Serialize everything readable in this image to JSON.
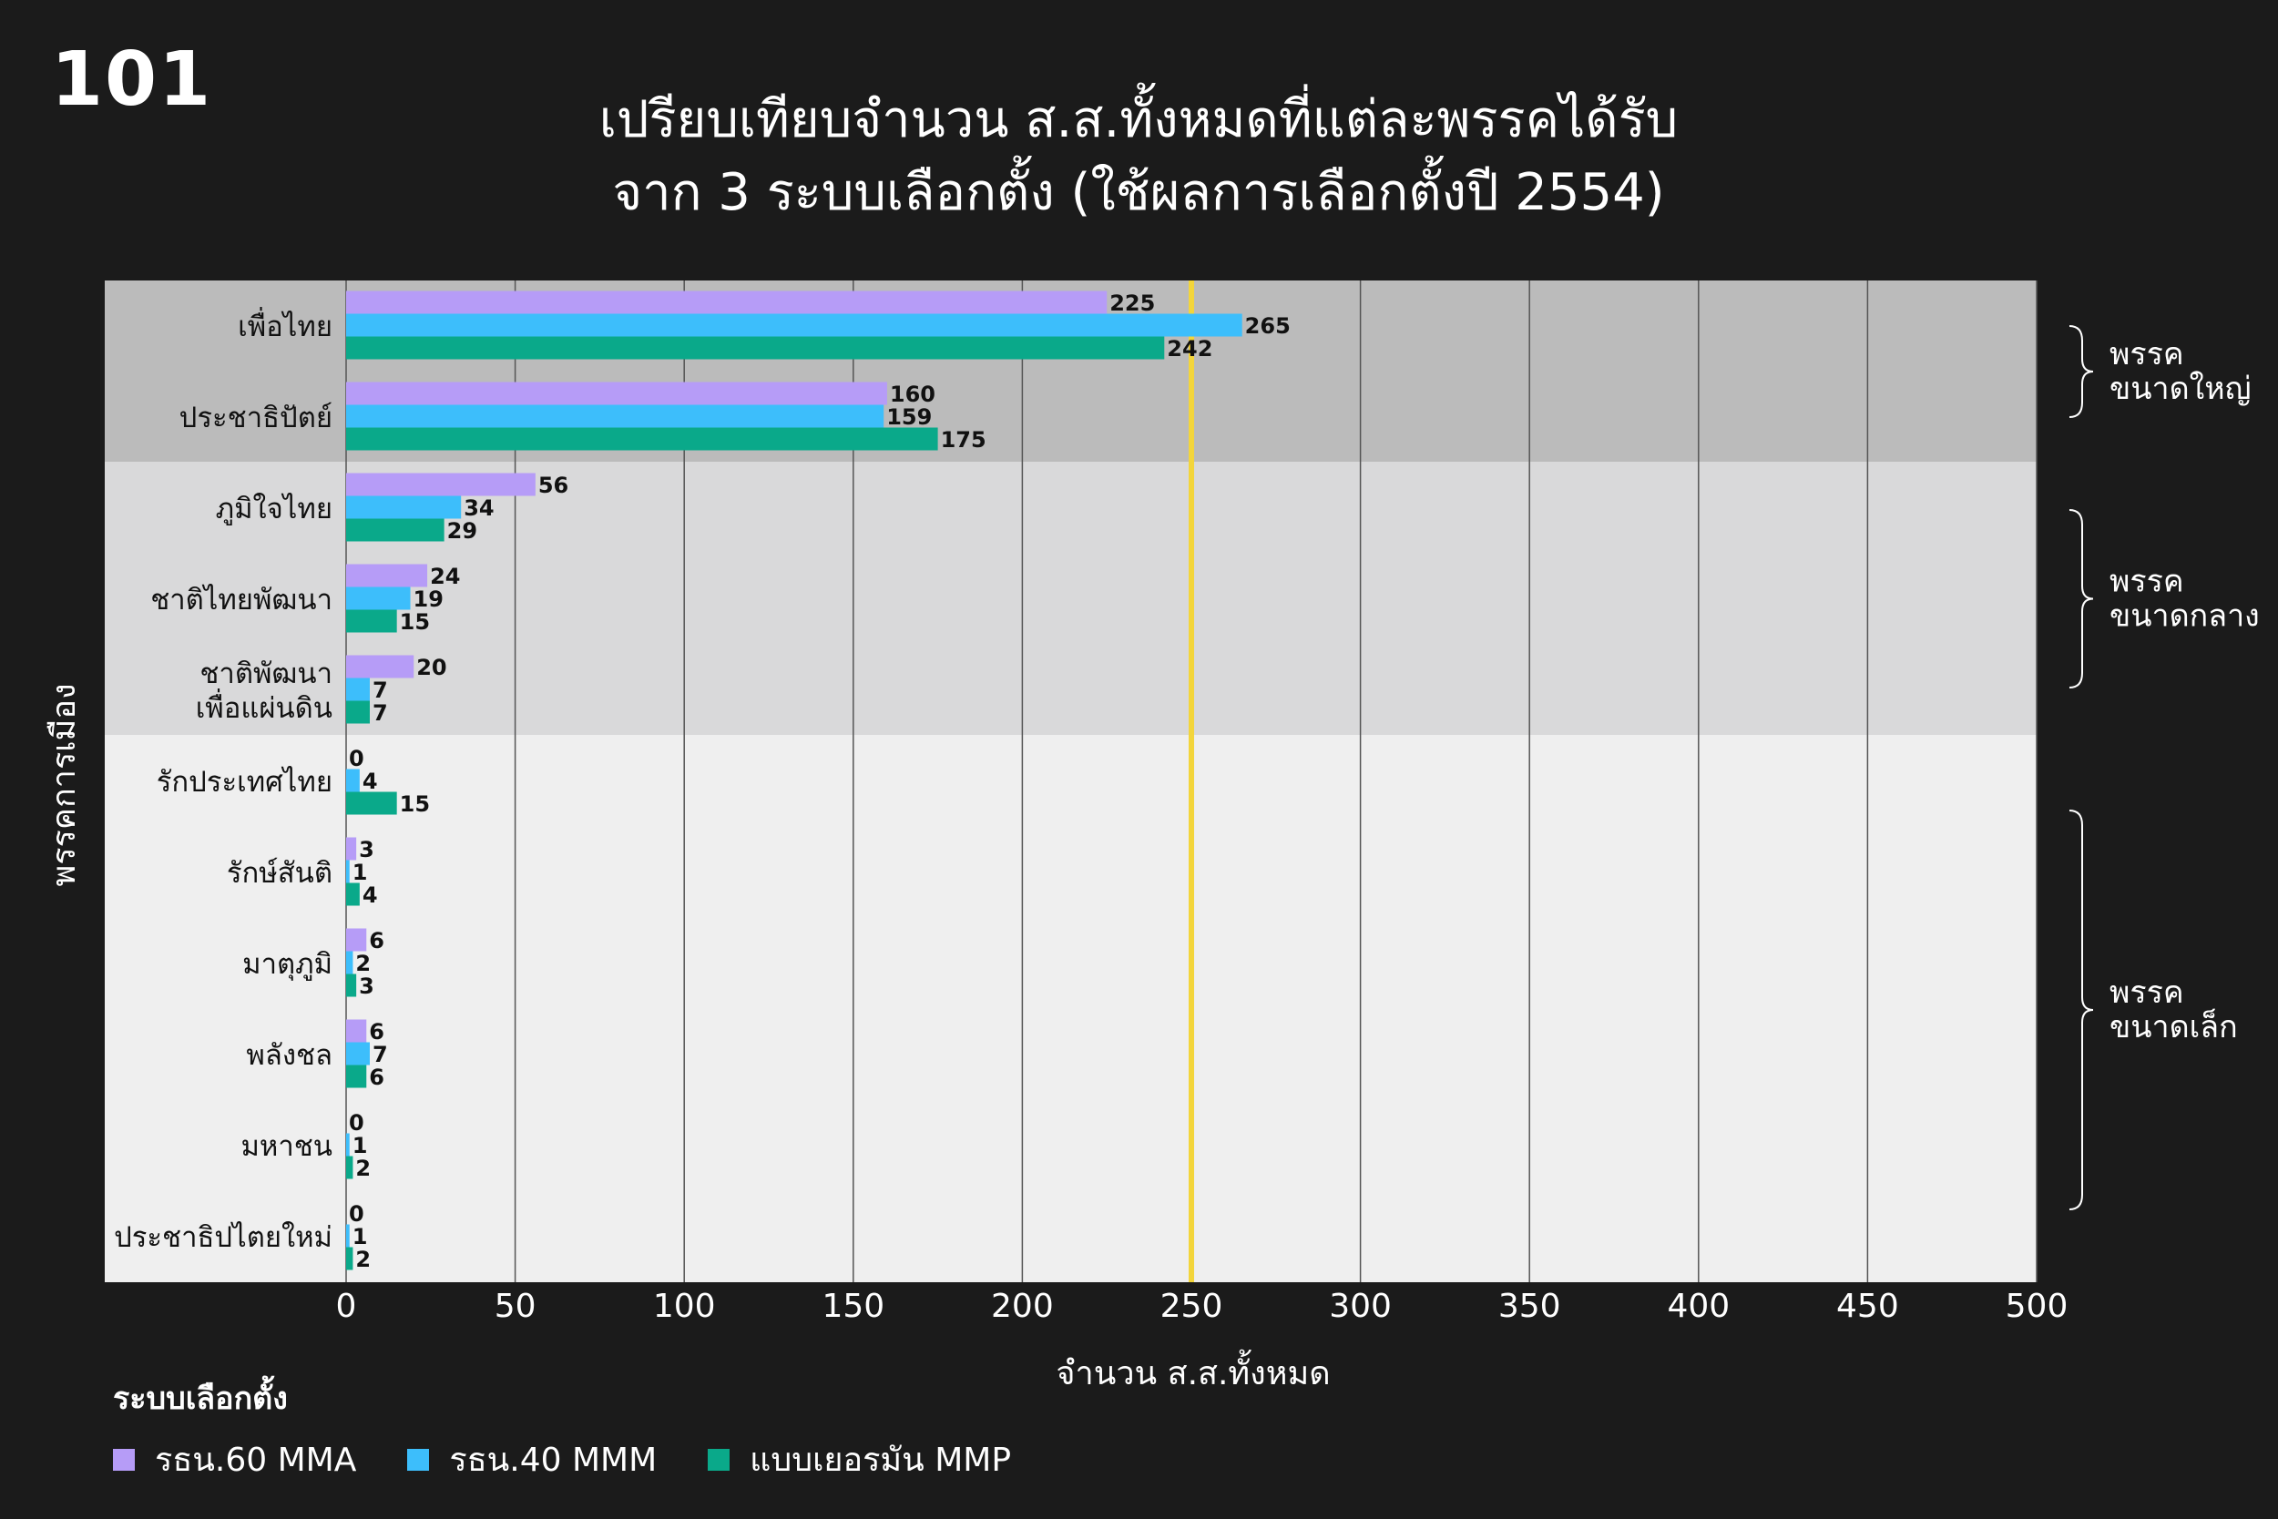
{
  "logo": "101",
  "title_lines": [
    "เปรียบเทียบจำนวน ส.ส.ทั้งหมดที่แต่ละพรรคได้รับ",
    "จาก 3 ระบบเลือกตั้ง (ใช้ผลการเลือกตั้งปี 2554)"
  ],
  "legend": {
    "title": "ระบบเลือกตั้ง",
    "items": [
      {
        "label": "รธน.60 MMA",
        "color": "#b69cf7"
      },
      {
        "label": "รธน.40 MMM",
        "color": "#3dbefb"
      },
      {
        "label": "แบบเยอรมัน MMP",
        "color": "#0aa98a"
      }
    ]
  },
  "chart_data": {
    "type": "bar",
    "orientation": "horizontal",
    "xlabel": "จำนวน ส.ส.ทั้งหมด",
    "ylabel": "พรรคการเมือง",
    "xlim": [
      0,
      500
    ],
    "xticks": [
      "0",
      "50",
      "100",
      "150",
      "200",
      "250",
      "300",
      "350",
      "400",
      "450",
      "500"
    ],
    "reference_line": {
      "x": 250,
      "color": "#f3d53b"
    },
    "categories": [
      [
        "เพื่อไทย"
      ],
      [
        "ประชาธิปัตย์"
      ],
      [
        "ภูมิใจไทย"
      ],
      [
        "ชาติไทยพัฒนา"
      ],
      [
        "ชาติพัฒนา",
        "เพื่อแผ่นดิน"
      ],
      [
        "รักประเทศไทย"
      ],
      [
        "รักษ์สันติ"
      ],
      [
        "มาตุภูมิ"
      ],
      [
        "พลังชล"
      ],
      [
        "มหาชน"
      ],
      [
        "ประชาธิปไตยใหม่"
      ]
    ],
    "series": [
      {
        "name": "รธน.60 MMA",
        "color": "#b69cf7",
        "values": [
          225,
          160,
          56,
          24,
          20,
          0,
          3,
          6,
          6,
          0,
          0
        ]
      },
      {
        "name": "รธน.40 MMM",
        "color": "#3dbefb",
        "values": [
          265,
          159,
          34,
          19,
          7,
          4,
          1,
          2,
          7,
          1,
          1
        ]
      },
      {
        "name": "แบบเยอรมัน MMP",
        "color": "#0aa98a",
        "values": [
          242,
          175,
          29,
          15,
          7,
          15,
          4,
          3,
          6,
          2,
          2
        ]
      }
    ],
    "groups": [
      {
        "label_lines": [
          "พรรค",
          "ขนาดใหญ่"
        ],
        "start": 0,
        "end": 1,
        "background": "#bbbbbb"
      },
      {
        "label_lines": [
          "พรรค",
          "ขนาดกลาง"
        ],
        "start": 2,
        "end": 4,
        "background": "#d9d9da"
      },
      {
        "label_lines": [
          "พรรค",
          "ขนาดเล็ก"
        ],
        "start": 5,
        "end": 10,
        "background": "#efefef"
      }
    ],
    "grid": "vertical",
    "legend_position": "bottom-left"
  }
}
